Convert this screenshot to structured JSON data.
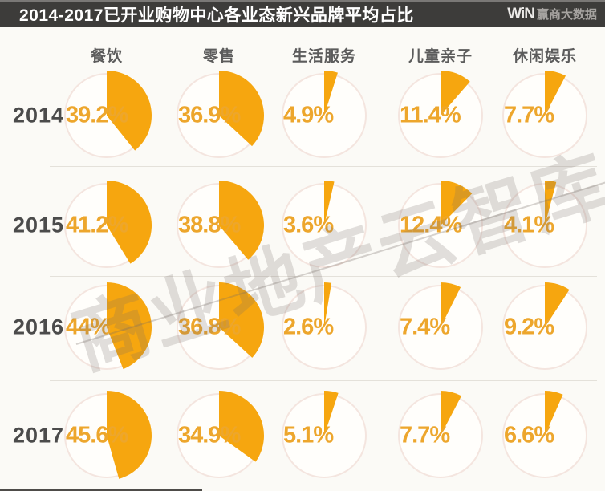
{
  "header": {
    "title": "2014-2017已开业购物中心各业态新兴品牌平均占比",
    "logo": {
      "win": "WiN",
      "text": "赢商大数据"
    }
  },
  "watermark": {
    "text": "商业地产云智库"
  },
  "chart_data": {
    "type": "pie",
    "title": "2014-2017已开业购物中心各业态新兴品牌平均占比",
    "categories": [
      "餐饮",
      "零售",
      "生活服务",
      "儿童亲子",
      "休闲娱乐"
    ],
    "rows": [
      {
        "year": "2014",
        "values": [
          39.2,
          36.9,
          4.9,
          11.4,
          7.7
        ],
        "labels": [
          "39.2%",
          "36.9%",
          "4.9%",
          "11.4%",
          "7.7%"
        ]
      },
      {
        "year": "2015",
        "values": [
          41.2,
          38.8,
          3.6,
          12.4,
          4.1
        ],
        "labels": [
          "41.2%",
          "38.8%",
          "3.6%",
          "12.4%",
          "4.1%"
        ]
      },
      {
        "year": "2016",
        "values": [
          44,
          36.8,
          2.6,
          7.4,
          9.2
        ],
        "labels": [
          "44%",
          "36.8%",
          "2.6%",
          "7.4%",
          "9.2%"
        ]
      },
      {
        "year": "2017",
        "values": [
          45.6,
          34.9,
          5.1,
          7.7,
          6.6
        ],
        "labels": [
          "45.6%",
          "34.9%",
          "5.1%",
          "7.7%",
          "6.6%"
        ]
      }
    ],
    "layout": {
      "wedge_start": "top",
      "direction": "clockwise",
      "legend": false,
      "unit": "%"
    },
    "colors": {
      "wedge": "#f6a60f",
      "value_label": "#eda62c",
      "circle_fill": "#fffefb",
      "circle_border": "#f4e5df",
      "header_bg": "#3d3c3a",
      "header_text": "#ffffff",
      "year_text": "#4b4b4b"
    }
  }
}
